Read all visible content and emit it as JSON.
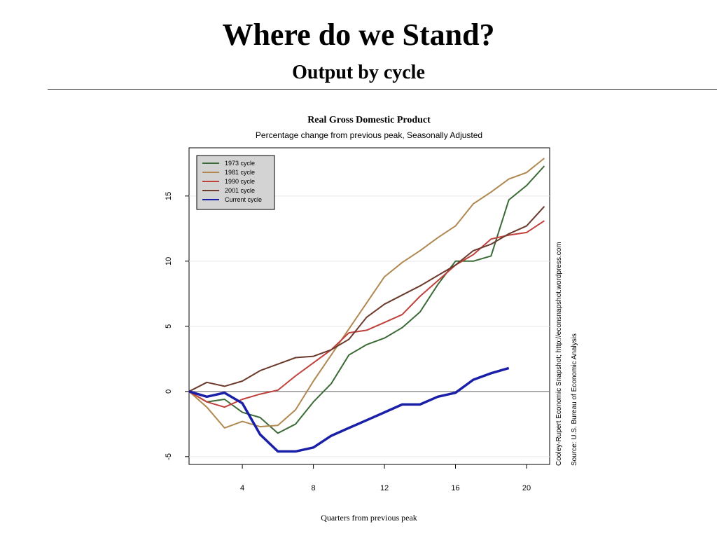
{
  "slide": {
    "title": "Where do we Stand?",
    "subtitle": "Output by cycle"
  },
  "chart_data": {
    "type": "line",
    "title": "Real Gross Domestic Product",
    "subtitle": "Percentage change from previous peak, Seasonally Adjusted",
    "xlabel": "Quarters from previous peak",
    "ylabel": "",
    "xlim": [
      1,
      21.3
    ],
    "ylim": [
      -5.6,
      18.7
    ],
    "x_ticks": [
      4,
      8,
      12,
      16,
      20
    ],
    "y_ticks": [
      -5,
      0,
      5,
      10,
      15
    ],
    "grid": "horizontal light lines",
    "legend_position": "top-left",
    "side_notes": [
      "Cooley-Rupert Economic Snapshot; http://econsnapshot.wordpress.com",
      "Source: U.S. Bureau of Economic Analysis"
    ],
    "series": [
      {
        "name": "1973 cycle",
        "color": "#3a6a35",
        "width": 2,
        "x": [
          1,
          2,
          3,
          4,
          5,
          6,
          7,
          8,
          9,
          10,
          11,
          12,
          13,
          14,
          15,
          16,
          17,
          18,
          19,
          20,
          21
        ],
        "y": [
          0,
          -0.8,
          -0.6,
          -1.6,
          -2.0,
          -3.2,
          -2.5,
          -0.8,
          0.6,
          2.8,
          3.6,
          4.1,
          4.9,
          6.1,
          8.2,
          10.0,
          10.0,
          10.4,
          14.7,
          15.8,
          17.3
        ]
      },
      {
        "name": "1981 cycle",
        "color": "#b08850",
        "width": 2,
        "x": [
          1,
          2,
          3,
          4,
          5,
          6,
          7,
          8,
          9,
          10,
          11,
          12,
          13,
          14,
          15,
          16,
          17,
          18,
          19,
          20,
          21
        ],
        "y": [
          0,
          -1.2,
          -2.8,
          -2.3,
          -2.7,
          -2.6,
          -1.4,
          0.8,
          2.8,
          4.8,
          6.8,
          8.8,
          9.9,
          10.8,
          11.8,
          12.7,
          14.4,
          15.3,
          16.3,
          16.8,
          17.9
        ]
      },
      {
        "name": "1990 cycle",
        "color": "#c0403c",
        "width": 2,
        "x": [
          1,
          2,
          3,
          4,
          5,
          6,
          7,
          8,
          9,
          10,
          11,
          12,
          13,
          14,
          15,
          16,
          17,
          18,
          19,
          20,
          21
        ],
        "y": [
          0,
          -0.8,
          -1.2,
          -0.6,
          -0.2,
          0.1,
          1.2,
          2.2,
          3.2,
          4.5,
          4.7,
          5.3,
          5.9,
          7.3,
          8.5,
          9.7,
          10.5,
          11.7,
          12.0,
          12.2,
          13.1
        ]
      },
      {
        "name": "2001 cycle",
        "color": "#6b3a2c",
        "width": 2,
        "x": [
          1,
          2,
          3,
          4,
          5,
          6,
          7,
          8,
          9,
          10,
          11,
          12,
          13,
          14,
          15,
          16,
          17,
          18,
          19,
          20,
          21
        ],
        "y": [
          0,
          0.7,
          0.4,
          0.8,
          1.6,
          2.1,
          2.6,
          2.7,
          3.2,
          4.0,
          5.7,
          6.7,
          7.4,
          8.1,
          8.9,
          9.7,
          10.8,
          11.3,
          12.1,
          12.7,
          14.2
        ]
      },
      {
        "name": "Current cycle",
        "color": "#1a1fa8",
        "width": 3.5,
        "x": [
          1,
          2,
          3,
          4,
          5,
          6,
          7,
          8,
          9,
          10,
          11,
          12,
          13,
          14,
          15,
          16,
          17,
          18,
          19
        ],
        "y": [
          0,
          -0.4,
          -0.1,
          -0.9,
          -3.3,
          -4.6,
          -4.6,
          -4.3,
          -3.4,
          -2.8,
          -2.2,
          -1.6,
          -1.0,
          -1.0,
          -0.4,
          -0.1,
          0.9,
          1.4,
          1.8
        ]
      }
    ]
  }
}
